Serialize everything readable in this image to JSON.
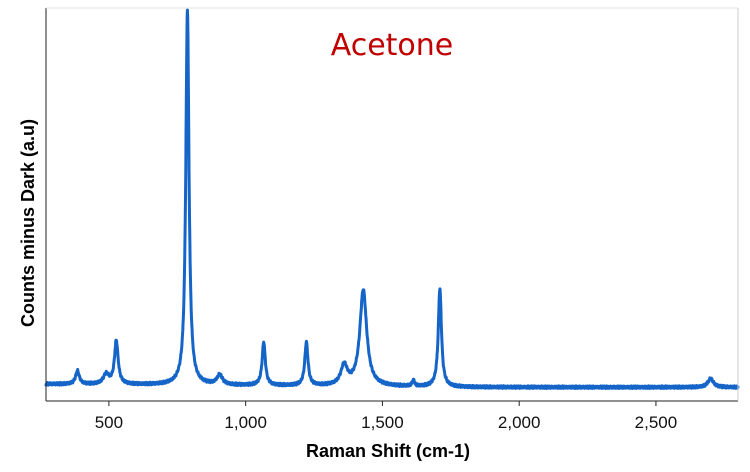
{
  "chart_data": {
    "type": "line",
    "title": "Acetone",
    "title_color": "#c00000",
    "xlabel": "Raman Shift (cm-1)",
    "ylabel": "Counts minus Dark (a.u)",
    "xlim": [
      270,
      2800
    ],
    "ylim": [
      0,
      1
    ],
    "x_ticks": [
      500,
      1000,
      1500,
      2000,
      2500
    ],
    "x_tick_labels": [
      "500",
      "1,000",
      "1,500",
      "2,000",
      "2,500"
    ],
    "y_tick_labels_shown": false,
    "grid": false,
    "legend": "none",
    "series": [
      {
        "color": "#1565c8",
        "baseline": 0.035,
        "peaks": [
          {
            "x": 385,
            "height": 0.034
          },
          {
            "x": 490,
            "height": 0.025
          },
          {
            "x": 527,
            "height": 0.11
          },
          {
            "x": 787,
            "height": 0.955
          },
          {
            "x": 905,
            "height": 0.025
          },
          {
            "x": 1066,
            "height": 0.11
          },
          {
            "x": 1222,
            "height": 0.11
          },
          {
            "x": 1360,
            "height": 0.05
          },
          {
            "x": 1430,
            "height": 0.245
          },
          {
            "x": 1613,
            "height": 0.015
          },
          {
            "x": 1710,
            "height": 0.25
          },
          {
            "x": 2700,
            "height": 0.022
          }
        ]
      }
    ]
  }
}
